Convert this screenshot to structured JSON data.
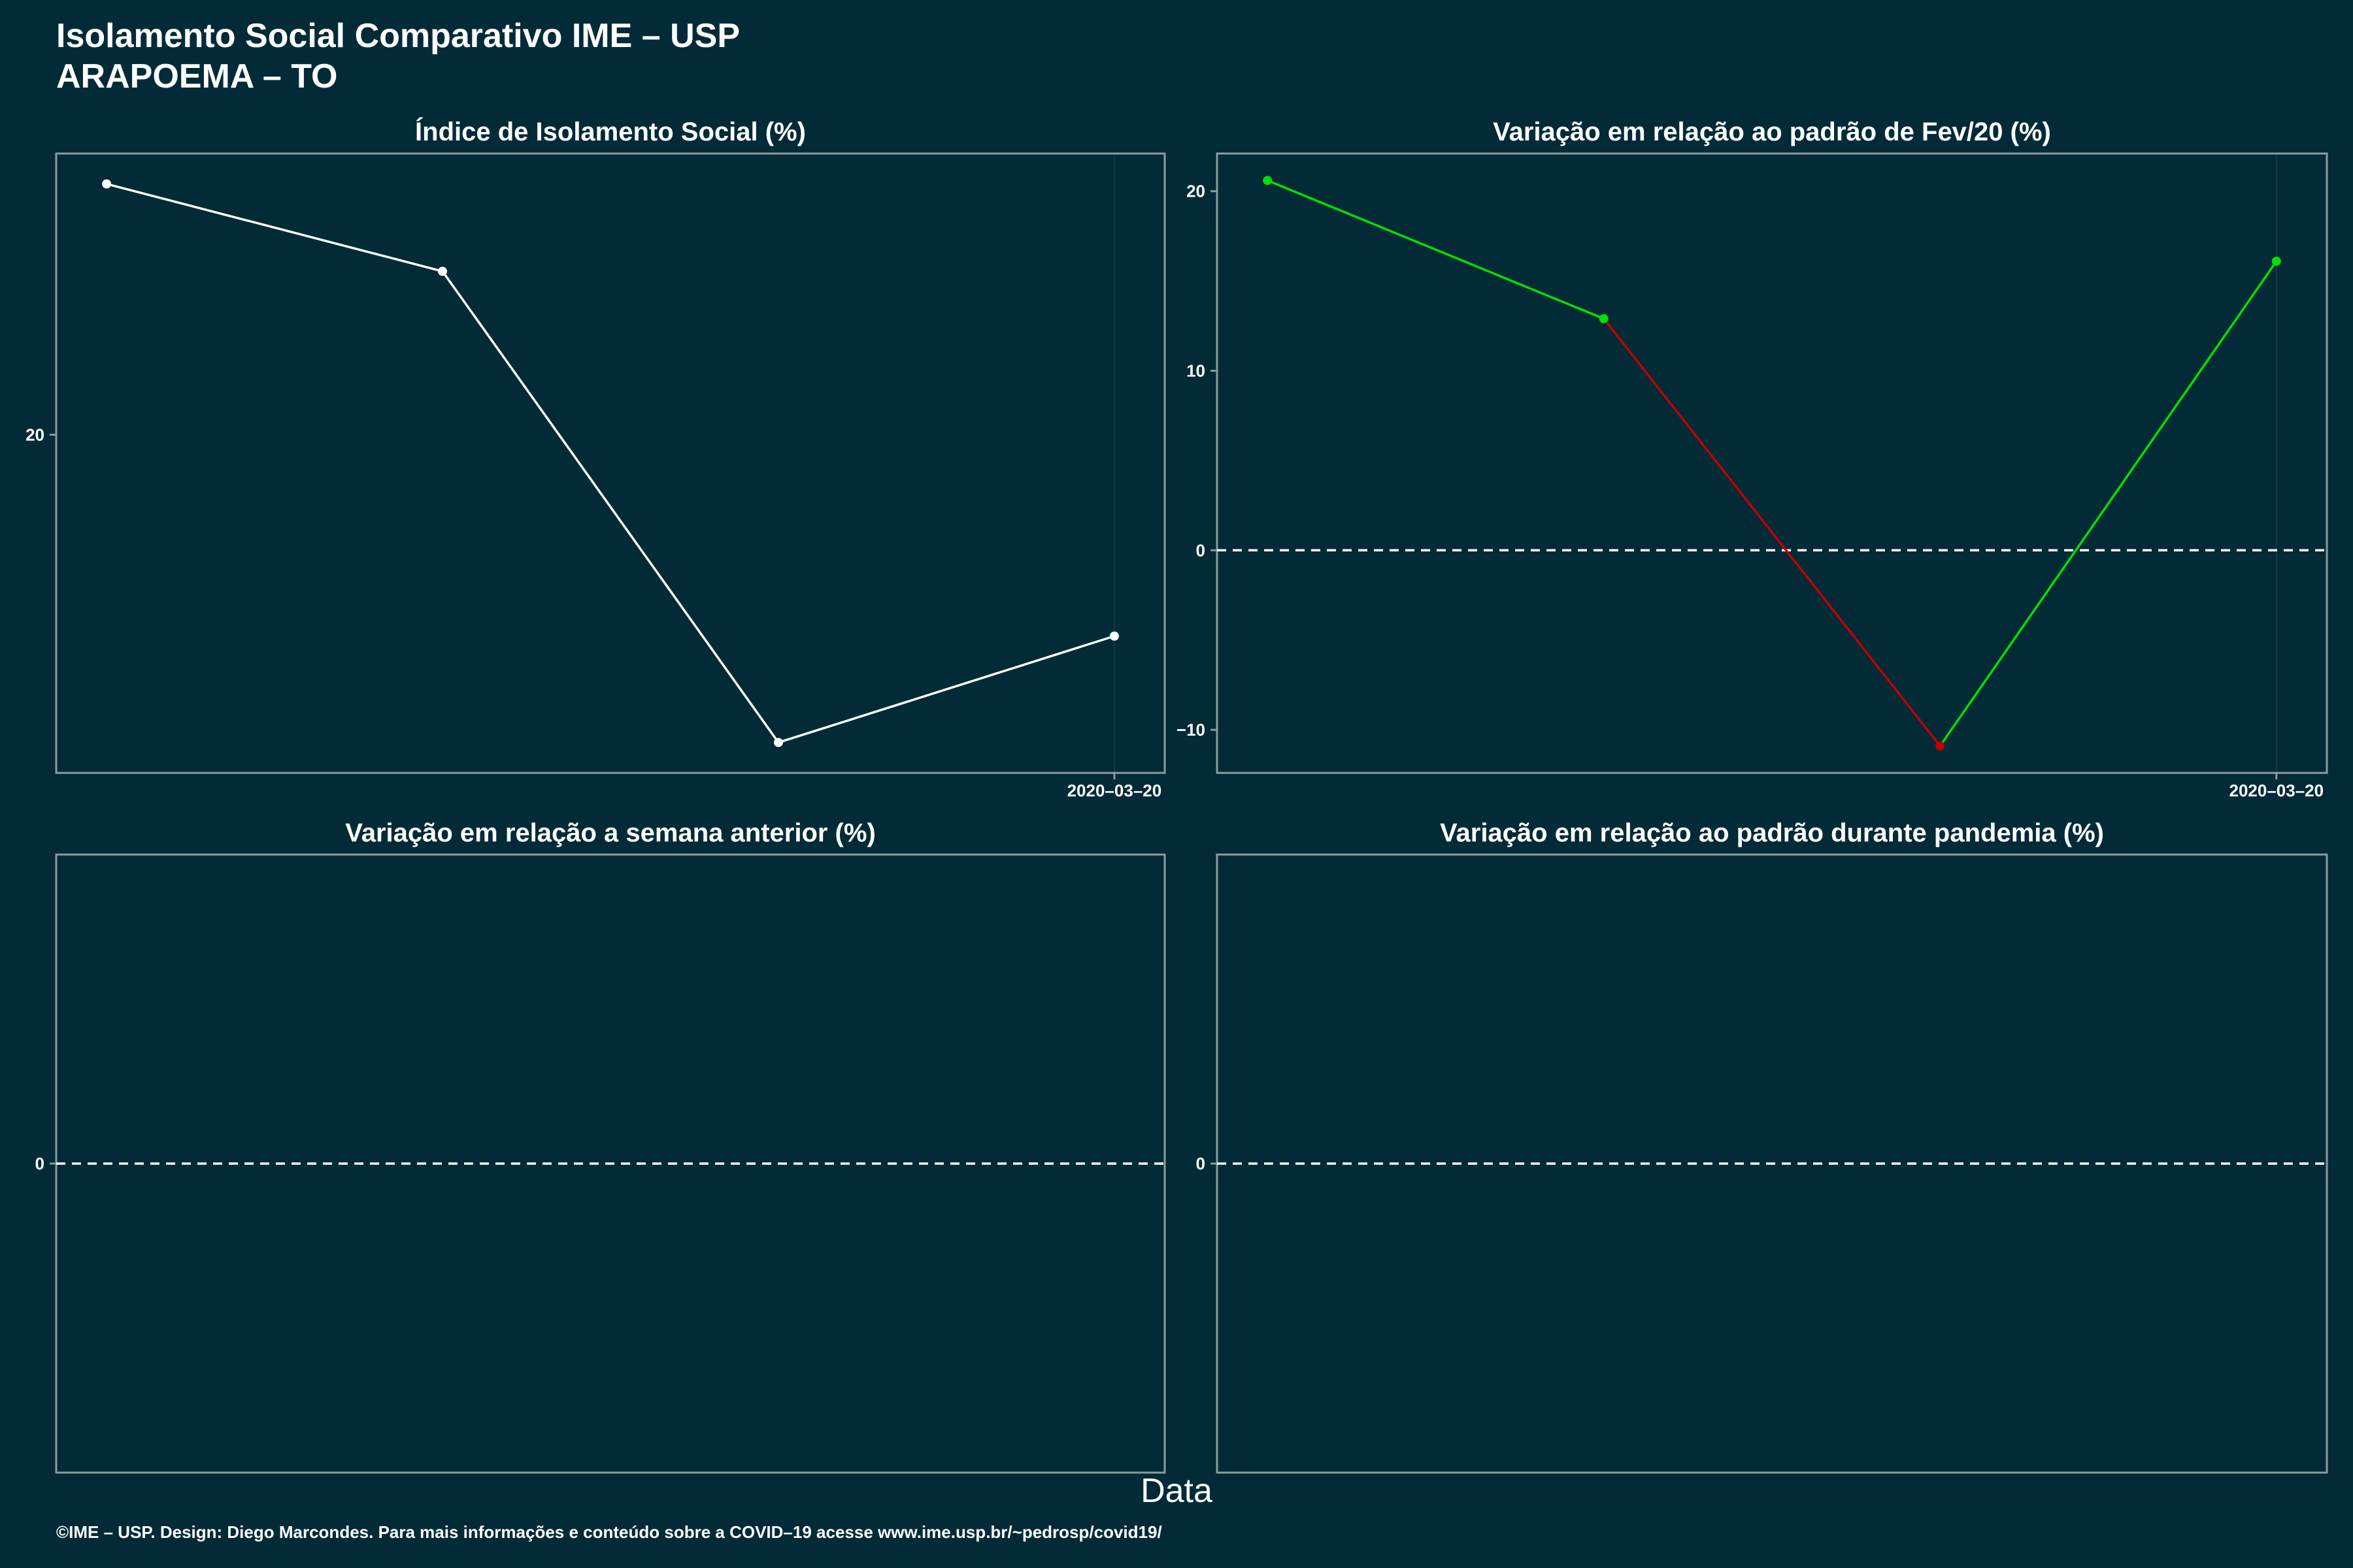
{
  "header": {
    "title": "Isolamento Social Comparativo IME – USP",
    "subtitle": "ARAPOEMA – TO"
  },
  "x_axis_title": "Data",
  "footer": "©IME – USP. Design: Diego Marcondes. Para mais informações e conteúdo sobre a COVID–19 acesse www.ime.usp.br/~pedrosp/covid19/",
  "colors": {
    "background": "#022b37",
    "panel_border": "#8a9ba0",
    "line_main": "#ffffff",
    "increase": "#00e000",
    "decrease": "#c00000",
    "zero_line": "#ffffff"
  },
  "chart_data": [
    {
      "type": "line",
      "title": "Índice de Isolamento Social (%)",
      "x": [
        "2020-03-17",
        "2020-03-18",
        "2020-03-19",
        "2020-03-20"
      ],
      "x_ticks": [
        "2020-03-20"
      ],
      "y": [
        26.6,
        24.3,
        11.9,
        14.7
      ],
      "y_ticks": [
        20
      ],
      "ylim": [
        11.1,
        27.4
      ],
      "xlim": [
        "2020-03-16.85",
        "2020-03-20.15"
      ],
      "point_colors": [
        "#ffffff",
        "#ffffff",
        "#ffffff",
        "#ffffff"
      ],
      "zero_line": false,
      "grid": false
    },
    {
      "type": "line",
      "title": "Variação em relação ao padrão de Fev/20 (%)",
      "x": [
        "2020-03-17",
        "2020-03-18",
        "2020-03-19",
        "2020-03-20"
      ],
      "x_ticks": [
        "2020-03-20"
      ],
      "y": [
        20.6,
        12.9,
        -10.9,
        16.1
      ],
      "y_ticks": [
        20,
        10,
        0,
        -10
      ],
      "ylim": [
        -12.4,
        22.1
      ],
      "xlim": [
        "2020-03-16.85",
        "2020-03-20.15"
      ],
      "point_colors": [
        "#00e000",
        "#00e000",
        "#c00000",
        "#00e000"
      ],
      "segment_colors": [
        "#00e000",
        "#c00000",
        "#00e000"
      ],
      "zero_line": true,
      "grid": false
    },
    {
      "type": "line",
      "title": "Variação em relação a semana anterior (%)",
      "x": [],
      "x_ticks": [],
      "y": [],
      "y_ticks": [
        0
      ],
      "ylim": [
        -1,
        1
      ],
      "zero_line": true,
      "grid": false
    },
    {
      "type": "line",
      "title": "Variação em relação ao padrão durante pandemia (%)",
      "x": [],
      "x_ticks": [],
      "y": [],
      "y_ticks": [
        0
      ],
      "ylim": [
        -1,
        1
      ],
      "zero_line": true,
      "grid": false
    }
  ]
}
